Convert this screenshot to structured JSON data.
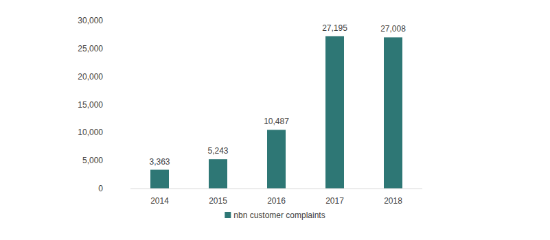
{
  "chart_data": {
    "type": "bar",
    "categories": [
      "2014",
      "2015",
      "2016",
      "2017",
      "2018"
    ],
    "series": [
      {
        "name": "nbn customer complaints",
        "color": "#2e7775",
        "values": [
          3363,
          5243,
          10487,
          27195,
          27008
        ],
        "value_labels": [
          "3,363",
          "5,243",
          "10,487",
          "27,195",
          "27,008"
        ]
      }
    ],
    "ylim": [
      0,
      30000
    ],
    "yticks": [
      0,
      {
        "value": 5000,
        "label": "5,000"
      },
      {
        "value": 10000,
        "label": "10,000"
      },
      {
        "value": 15000,
        "label": "15,000"
      },
      {
        "value": 20000,
        "label": "20,000"
      },
      {
        "value": 25000,
        "label": "25,000"
      },
      {
        "value": 30000,
        "label": "30,000"
      }
    ],
    "grid": false,
    "data_labels": true,
    "legend": "bottom"
  }
}
